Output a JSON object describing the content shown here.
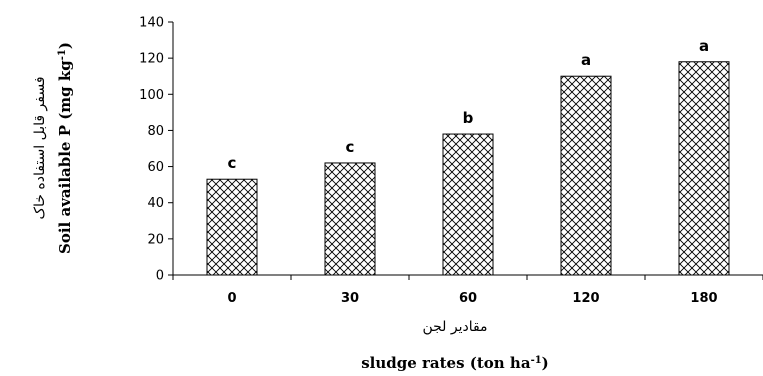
{
  "chart_data": {
    "type": "bar",
    "categories": [
      "0",
      "30",
      "60",
      "120",
      "180"
    ],
    "values": [
      53,
      62,
      78,
      110,
      118
    ],
    "significance_letters": [
      "c",
      "c",
      "b",
      "a",
      "a"
    ],
    "ylim": [
      0,
      140
    ],
    "yticks": [
      0,
      20,
      40,
      60,
      80,
      100,
      120,
      140
    ],
    "ylabel_fa": "فسفر قابل استفاده خاک",
    "ylabel_en": "Soil available P (mg kg-1)",
    "ylabel_en_main": "Soil available P (mg kg",
    "ylabel_en_sup": "-1",
    "ylabel_en_close": ")",
    "xlabel_fa": "مقادیر لجن",
    "xlabel_en": "sludge rates (ton ha-1)",
    "xlabel_en_main": "sludge rates (ton ha",
    "xlabel_en_sup": "-1",
    "xlabel_en_close": ")",
    "bar_pattern": "crosshatch",
    "grid": false
  }
}
